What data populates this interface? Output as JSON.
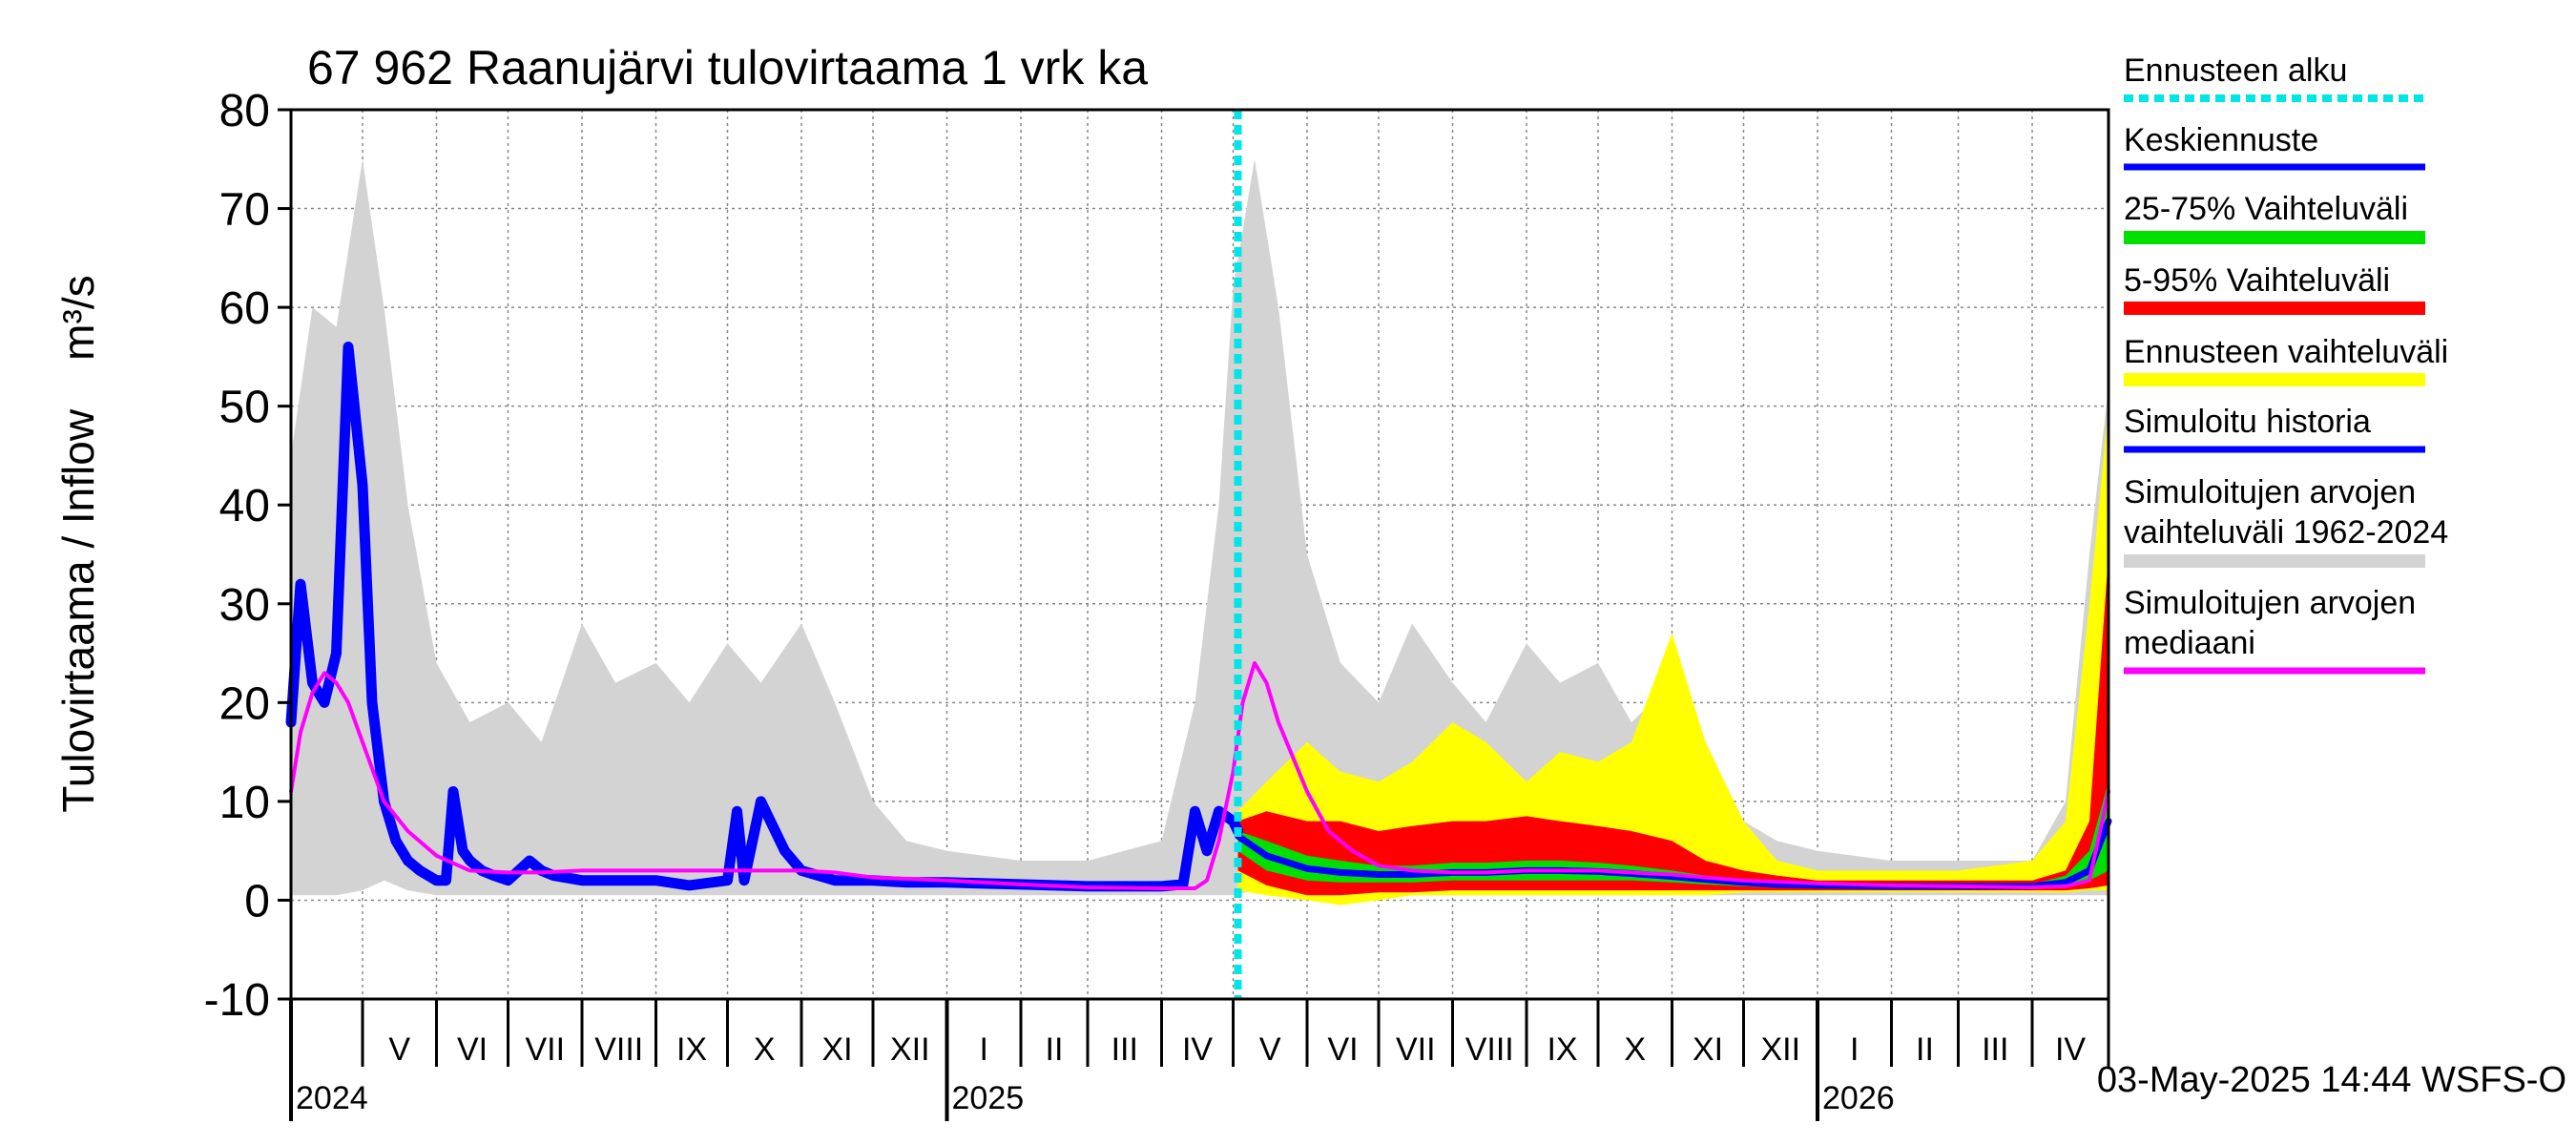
{
  "chart_data": {
    "type": "line",
    "title": "67 962 Raanujärvi tulovirtaama 1 vrk ka",
    "ylabel": "Tulovirtaama / Inflow    m³/s",
    "ylim": [
      -10,
      80
    ],
    "yticks": [
      -10,
      0,
      10,
      20,
      30,
      40,
      50,
      60,
      70,
      80
    ],
    "grid": true,
    "x_range": [
      "2024-04-01",
      "2026-05-03"
    ],
    "month_labels": [
      {
        "label": "V",
        "date": "2024-05-01"
      },
      {
        "label": "VI",
        "date": "2024-06-01"
      },
      {
        "label": "VII",
        "date": "2024-07-01"
      },
      {
        "label": "VIII",
        "date": "2024-08-01"
      },
      {
        "label": "IX",
        "date": "2024-09-01"
      },
      {
        "label": "X",
        "date": "2024-10-01"
      },
      {
        "label": "XI",
        "date": "2024-11-01"
      },
      {
        "label": "XII",
        "date": "2024-12-01"
      },
      {
        "label": "I",
        "date": "2025-01-01"
      },
      {
        "label": "II",
        "date": "2025-02-01"
      },
      {
        "label": "III",
        "date": "2025-03-01"
      },
      {
        "label": "IV",
        "date": "2025-04-01"
      },
      {
        "label": "V",
        "date": "2025-05-01"
      },
      {
        "label": "VI",
        "date": "2025-06-01"
      },
      {
        "label": "VII",
        "date": "2025-07-01"
      },
      {
        "label": "VIII",
        "date": "2025-08-01"
      },
      {
        "label": "IX",
        "date": "2025-09-01"
      },
      {
        "label": "X",
        "date": "2025-10-01"
      },
      {
        "label": "XI",
        "date": "2025-11-01"
      },
      {
        "label": "XII",
        "date": "2025-12-01"
      },
      {
        "label": "I",
        "date": "2026-01-01"
      },
      {
        "label": "II",
        "date": "2026-02-01"
      },
      {
        "label": "III",
        "date": "2026-03-01"
      },
      {
        "label": "IV",
        "date": "2026-04-01"
      }
    ],
    "year_labels": [
      {
        "label": "2024",
        "date": "2024-04-01"
      },
      {
        "label": "2025",
        "date": "2025-01-01"
      },
      {
        "label": "2026",
        "date": "2026-01-01"
      }
    ],
    "forecast_start": "2025-05-03",
    "footer": "03-May-2025 14:44 WSFS-O",
    "legend_position": "right",
    "legend": [
      {
        "key": "forecast_start",
        "label": "Ennusteen alku",
        "color": "#00e5e5",
        "style": "dotted"
      },
      {
        "key": "median_forecast",
        "label": "Keskiennuste",
        "color": "#0000ff"
      },
      {
        "key": "p25_75",
        "label": "25-75% Vaihteluväli",
        "color": "#00e000"
      },
      {
        "key": "p5_95",
        "label": "5-95% Vaihteluväli",
        "color": "#ff0000"
      },
      {
        "key": "forecast_range",
        "label": "Ennusteen vaihteluväli",
        "color": "#ffff00"
      },
      {
        "key": "simulated_history",
        "label": "Simuloitu historia",
        "color": "#0000ff"
      },
      {
        "key": "sim_range",
        "label": "Simuloitujen arvojen vaihteluväli 1962-2024",
        "label_lines": [
          "Simuloitujen arvojen",
          "vaihteluväli 1962-2024"
        ],
        "color": "#d3d3d3"
      },
      {
        "key": "sim_median",
        "label": "Simuloitujen arvojen mediaani",
        "label_lines": [
          "Simuloitujen arvojen",
          "mediaani"
        ],
        "color": "#ff00ff"
      }
    ],
    "series": [
      {
        "name": "Simuloitujen arvojen vaihteluväli 1962-2024",
        "key": "sim_range",
        "type": "band",
        "color": "#d3d3d3",
        "x": [
          "2024-04-01",
          "2024-04-10",
          "2024-04-20",
          "2024-05-01",
          "2024-05-10",
          "2024-05-20",
          "2024-06-01",
          "2024-06-15",
          "2024-07-01",
          "2024-07-15",
          "2024-08-01",
          "2024-08-15",
          "2024-09-01",
          "2024-09-15",
          "2024-10-01",
          "2024-10-15",
          "2024-11-01",
          "2024-11-15",
          "2024-12-01",
          "2024-12-15",
          "2025-01-01",
          "2025-02-01",
          "2025-03-01",
          "2025-04-01",
          "2025-04-15",
          "2025-04-25",
          "2025-05-01",
          "2025-05-10",
          "2025-05-20",
          "2025-06-01",
          "2025-06-15",
          "2025-07-01",
          "2025-07-15",
          "2025-08-01",
          "2025-08-15",
          "2025-09-01",
          "2025-09-15",
          "2025-10-01",
          "2025-10-15",
          "2025-11-01",
          "2025-11-15",
          "2025-12-01",
          "2025-12-15",
          "2026-01-01",
          "2026-02-01",
          "2026-03-01",
          "2026-04-01",
          "2026-04-15",
          "2026-04-25",
          "2026-05-03"
        ],
        "low": [
          0.5,
          0.5,
          0.5,
          1,
          2,
          1,
          0.5,
          0.5,
          0.5,
          0.5,
          0.5,
          0.5,
          0.5,
          0.5,
          0.5,
          0.5,
          0.5,
          0.5,
          0.5,
          0.5,
          0.5,
          0.5,
          0.5,
          0.5,
          0.5,
          0.5,
          0.5,
          1,
          1.5,
          1,
          0.5,
          0.5,
          0.5,
          0.5,
          0.5,
          0.5,
          0.5,
          0.5,
          0.5,
          0.5,
          0.5,
          0.5,
          0.5,
          0.5,
          0.5,
          0.5,
          0.5,
          0.5,
          0.5,
          0.5
        ],
        "high": [
          45,
          60,
          58,
          75,
          60,
          40,
          24,
          18,
          20,
          16,
          28,
          22,
          24,
          20,
          26,
          22,
          28,
          20,
          10,
          6,
          5,
          4,
          4,
          6,
          20,
          40,
          62,
          75,
          60,
          35,
          24,
          20,
          28,
          22,
          18,
          26,
          22,
          24,
          18,
          22,
          16,
          8,
          6,
          5,
          4,
          4,
          4,
          10,
          35,
          52
        ]
      },
      {
        "name": "Ennusteen vaihteluväli",
        "key": "forecast_range",
        "type": "band",
        "color": "#ffff00",
        "x": [
          "2025-05-03",
          "2025-05-15",
          "2025-06-01",
          "2025-06-15",
          "2025-07-01",
          "2025-07-15",
          "2025-08-01",
          "2025-08-15",
          "2025-09-01",
          "2025-09-15",
          "2025-10-01",
          "2025-10-15",
          "2025-11-01",
          "2025-11-15",
          "2025-12-01",
          "2025-12-15",
          "2026-01-01",
          "2026-02-01",
          "2026-03-01",
          "2026-04-01",
          "2026-04-15",
          "2026-04-25",
          "2026-05-03"
        ],
        "low": [
          1,
          0.5,
          0,
          -0.5,
          0,
          0.5,
          0.5,
          0.5,
          0.5,
          0.5,
          0.5,
          0.5,
          0.5,
          0.5,
          0.8,
          0.8,
          0.8,
          0.8,
          0.8,
          0.8,
          0.8,
          1,
          1
        ],
        "high": [
          9,
          12,
          16,
          13,
          12,
          14,
          18,
          16,
          12,
          15,
          14,
          16,
          27,
          16,
          8,
          4,
          3,
          3,
          3,
          4,
          8,
          30,
          50
        ]
      },
      {
        "name": "5-95% Vaihteluväli",
        "key": "p5_95",
        "type": "band",
        "color": "#ff0000",
        "x": [
          "2025-05-03",
          "2025-05-15",
          "2025-06-01",
          "2025-06-15",
          "2025-07-01",
          "2025-07-15",
          "2025-08-01",
          "2025-08-15",
          "2025-09-01",
          "2025-09-15",
          "2025-10-01",
          "2025-10-15",
          "2025-11-01",
          "2025-11-15",
          "2025-12-01",
          "2025-12-15",
          "2026-01-01",
          "2026-02-01",
          "2026-03-01",
          "2026-04-01",
          "2026-04-15",
          "2026-04-25",
          "2026-05-03"
        ],
        "low": [
          3,
          1.5,
          0.5,
          0.5,
          0.8,
          0.8,
          1,
          1,
          1,
          1,
          1,
          1,
          1,
          1,
          1,
          1,
          1,
          1,
          1,
          1,
          1,
          1.2,
          1.5
        ],
        "high": [
          8,
          9,
          8,
          8,
          7,
          7.5,
          8,
          8,
          8.5,
          8,
          7.5,
          7,
          6,
          4,
          3,
          2.5,
          2,
          2,
          2,
          2,
          3,
          8,
          35
        ]
      },
      {
        "name": "25-75% Vaihteluväli",
        "key": "p25_75",
        "type": "band",
        "color": "#00e000",
        "x": [
          "2025-05-03",
          "2025-05-15",
          "2025-06-01",
          "2025-06-15",
          "2025-07-01",
          "2025-07-15",
          "2025-08-01",
          "2025-08-15",
          "2025-09-01",
          "2025-09-15",
          "2025-10-01",
          "2025-10-15",
          "2025-11-01",
          "2025-11-15",
          "2025-12-01",
          "2025-12-15",
          "2026-01-01",
          "2026-02-01",
          "2026-03-01",
          "2026-04-01",
          "2026-04-15",
          "2026-04-25",
          "2026-05-03"
        ],
        "low": [
          5,
          3,
          2,
          1.8,
          1.8,
          1.8,
          2,
          2,
          2,
          2,
          2,
          2,
          1.8,
          1.6,
          1.4,
          1.3,
          1.2,
          1.2,
          1.2,
          1.2,
          1.5,
          2,
          3
        ],
        "high": [
          7,
          6,
          4.5,
          4,
          3.5,
          3.5,
          3.8,
          3.8,
          4,
          4,
          3.8,
          3.5,
          3,
          2.5,
          2,
          1.8,
          1.6,
          1.5,
          1.5,
          1.6,
          2.5,
          5,
          12
        ]
      },
      {
        "name": "Keskiennuste",
        "key": "median_forecast",
        "type": "line",
        "color": "#0000ff",
        "x": [
          "2025-05-03",
          "2025-05-15",
          "2025-06-01",
          "2025-06-15",
          "2025-07-01",
          "2025-07-15",
          "2025-08-01",
          "2025-08-15",
          "2025-09-01",
          "2025-09-15",
          "2025-10-01",
          "2025-10-15",
          "2025-11-01",
          "2025-11-15",
          "2025-12-01",
          "2025-12-15",
          "2026-01-01",
          "2026-02-01",
          "2026-03-01",
          "2026-04-01",
          "2026-04-15",
          "2026-04-25",
          "2026-05-03"
        ],
        "values": [
          6.5,
          4.5,
          3.2,
          2.8,
          2.6,
          2.6,
          2.8,
          2.8,
          3,
          3,
          2.9,
          2.7,
          2.4,
          2.1,
          1.8,
          1.6,
          1.5,
          1.4,
          1.4,
          1.4,
          1.8,
          3,
          8
        ]
      },
      {
        "name": "Simuloitu historia",
        "key": "simulated_history",
        "type": "line",
        "color": "#0000ff",
        "x": [
          "2024-04-01",
          "2024-04-05",
          "2024-04-10",
          "2024-04-15",
          "2024-04-20",
          "2024-04-25",
          "2024-05-01",
          "2024-05-05",
          "2024-05-10",
          "2024-05-15",
          "2024-05-20",
          "2024-05-25",
          "2024-06-01",
          "2024-06-05",
          "2024-06-08",
          "2024-06-12",
          "2024-06-15",
          "2024-06-20",
          "2024-06-25",
          "2024-07-01",
          "2024-07-10",
          "2024-07-15",
          "2024-07-20",
          "2024-08-01",
          "2024-08-15",
          "2024-09-01",
          "2024-09-15",
          "2024-10-01",
          "2024-10-05",
          "2024-10-08",
          "2024-10-15",
          "2024-10-25",
          "2024-11-01",
          "2024-11-15",
          "2024-12-01",
          "2024-12-15",
          "2025-01-01",
          "2025-02-01",
          "2025-03-01",
          "2025-04-01",
          "2025-04-10",
          "2025-04-15",
          "2025-04-20",
          "2025-04-25",
          "2025-05-01",
          "2025-05-03"
        ],
        "values": [
          18,
          32,
          22,
          20,
          25,
          56,
          42,
          20,
          10,
          6,
          4,
          3,
          2,
          2,
          11,
          5,
          4,
          3,
          2.5,
          2,
          4,
          3,
          2.5,
          2,
          2,
          2,
          1.5,
          2,
          9,
          2,
          10,
          5,
          3,
          2,
          2,
          1.8,
          1.8,
          1.6,
          1.4,
          1.4,
          1.6,
          9,
          5,
          9,
          8,
          7
        ]
      },
      {
        "name": "Simuloitujen arvojen mediaani",
        "key": "sim_median",
        "type": "line",
        "color": "#ff00ff",
        "x": [
          "2024-04-01",
          "2024-04-05",
          "2024-04-10",
          "2024-04-15",
          "2024-04-20",
          "2024-04-25",
          "2024-05-01",
          "2024-05-10",
          "2024-05-20",
          "2024-06-01",
          "2024-06-15",
          "2024-07-01",
          "2024-07-15",
          "2024-08-01",
          "2024-08-15",
          "2024-09-01",
          "2024-09-15",
          "2024-10-01",
          "2024-10-15",
          "2024-11-01",
          "2024-11-15",
          "2024-12-01",
          "2025-01-01",
          "2025-02-01",
          "2025-03-01",
          "2025-04-01",
          "2025-04-15",
          "2025-04-20",
          "2025-04-25",
          "2025-05-01",
          "2025-05-05",
          "2025-05-10",
          "2025-05-15",
          "2025-05-20",
          "2025-06-01",
          "2025-06-10",
          "2025-06-20",
          "2025-07-01",
          "2025-07-15",
          "2025-08-01",
          "2025-08-15",
          "2025-09-01",
          "2025-09-15",
          "2025-10-01",
          "2025-10-15",
          "2025-11-01",
          "2025-11-15",
          "2025-12-01",
          "2026-01-01",
          "2026-02-01",
          "2026-03-01",
          "2026-04-01",
          "2026-04-15",
          "2026-04-25",
          "2026-05-03"
        ],
        "values": [
          11,
          17,
          21,
          23,
          22,
          20,
          16,
          10,
          7,
          4.5,
          3,
          2.8,
          2.8,
          3,
          3,
          3,
          3,
          3,
          3,
          3,
          2.8,
          2.3,
          2,
          1.6,
          1.3,
          1.2,
          1.2,
          2,
          6,
          13,
          20,
          24,
          22,
          18,
          11,
          7,
          5,
          3.5,
          3,
          2.8,
          2.8,
          3,
          3,
          3,
          2.8,
          2.6,
          2.3,
          2,
          1.7,
          1.5,
          1.4,
          1.3,
          1.4,
          2,
          11
        ]
      }
    ]
  }
}
